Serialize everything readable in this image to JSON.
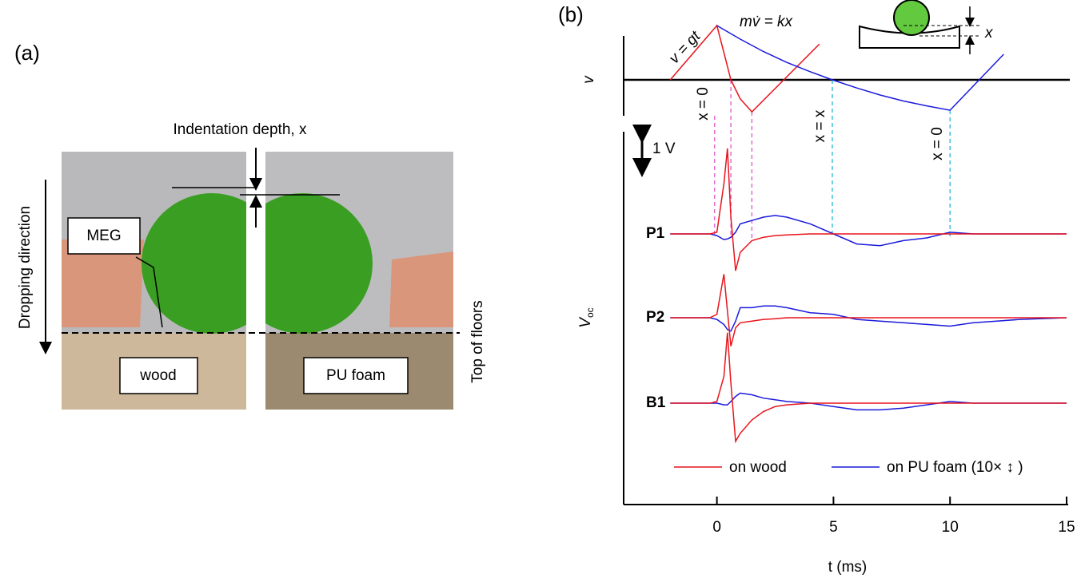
{
  "panel_a": {
    "label": "(a)",
    "indentation": "Indentation depth, x",
    "meg": "MEG",
    "dropping": "Dropping direction",
    "floor_left": "wood",
    "floor_right": "PU foam",
    "top": "Top of floors"
  },
  "panel_b": {
    "label": "(b)"
  },
  "chart_data": [
    {
      "type": "line",
      "ylabel": "v",
      "equations": [
        "v = gt",
        "mv̇ = kx"
      ],
      "inset_label": "x",
      "series": [
        {
          "color": "#e8141b",
          "x": [
            -2.0,
            0,
            0.3,
            0.6,
            1.0,
            1.5,
            4.4
          ],
          "values": [
            0,
            1,
            0.5,
            0,
            -0.35,
            -0.59,
            0.66
          ]
        },
        {
          "color": "#1a1adb",
          "x": [
            0,
            1,
            2,
            3,
            4,
            4.95,
            6,
            7,
            8,
            9,
            10,
            12.3
          ],
          "values": [
            1,
            0.75,
            0.52,
            0.32,
            0.15,
            0,
            -0.15,
            -0.28,
            -0.39,
            -0.48,
            -0.56,
            0.47
          ]
        }
      ],
      "markers": [
        {
          "x": -0.1,
          "color": "#e36ccf"
        },
        {
          "x": 0.6,
          "color": "#e36ccf"
        },
        {
          "x": 1.5,
          "color": "#e36ccf"
        },
        {
          "x": 4.95,
          "color": "#3cc0e0"
        },
        {
          "x": 10,
          "color": "#3cc0e0"
        }
      ],
      "annotations": [
        "x = 0",
        "x = x",
        "x = 0"
      ]
    },
    {
      "type": "line",
      "ylabel": "V",
      "ylabel_sub": "oc",
      "xlabel": "t (ms)",
      "xlim": [
        -4.0,
        15
      ],
      "xticks": [
        0,
        5,
        10,
        15
      ],
      "scale_bar": {
        "value": 1,
        "label": "1 V"
      },
      "series": [
        {
          "name": "on wood",
          "color": "#e8141b"
        },
        {
          "name": "on PU foam (10× ↕ )",
          "color": "#1a1adb"
        }
      ],
      "x": [
        -2.0,
        -0.3,
        0,
        0.3,
        0.45,
        0.6,
        0.8,
        1.0,
        1.5,
        2,
        2.5,
        3,
        4,
        5,
        6,
        7,
        8,
        9,
        10,
        11,
        12,
        13,
        15
      ],
      "traces": [
        {
          "label": "P1",
          "values": [
            [
              0,
              0,
              0.05,
              1.5,
              2.55,
              0.5,
              -1.1,
              -0.55,
              -0.2,
              -0.1,
              -0.05,
              -0.03,
              0,
              0,
              0,
              0,
              0,
              0,
              0,
              0,
              0,
              0,
              0
            ],
            [
              0,
              0,
              -0.05,
              -0.17,
              -0.15,
              -0.1,
              0.05,
              0.3,
              0.4,
              0.5,
              0.55,
              0.5,
              0.3,
              0,
              -0.3,
              -0.35,
              -0.2,
              -0.12,
              0.05,
              0,
              0,
              0,
              0
            ]
          ]
        },
        {
          "label": "P2",
          "values": [
            [
              0,
              0,
              0.1,
              1.3,
              0.2,
              -0.85,
              -0.3,
              -0.15,
              -0.1,
              -0.05,
              -0.03,
              0,
              0,
              0,
              0,
              0,
              0,
              0,
              0,
              0,
              0,
              0,
              0
            ],
            [
              0,
              0,
              -0.05,
              -0.2,
              -0.35,
              -0.4,
              -0.1,
              0.3,
              0.3,
              0.35,
              0.35,
              0.3,
              0.15,
              0.1,
              -0.05,
              -0.1,
              -0.15,
              -0.2,
              -0.25,
              -0.15,
              -0.1,
              -0.05,
              0
            ]
          ]
        },
        {
          "label": "B1",
          "values": [
            [
              0,
              0,
              0.05,
              0.8,
              2.1,
              0.6,
              -1.14,
              -0.9,
              -0.5,
              -0.25,
              -0.1,
              -0.05,
              0,
              0,
              0,
              0,
              0,
              0,
              0,
              0,
              0,
              0,
              0
            ],
            [
              0,
              0,
              0,
              -0.05,
              -0.05,
              0.05,
              0.2,
              0.3,
              0.25,
              0.15,
              0.1,
              0.05,
              0,
              -0.1,
              -0.2,
              -0.2,
              -0.15,
              -0.05,
              0.05,
              0,
              0,
              0,
              0
            ]
          ]
        }
      ]
    }
  ]
}
